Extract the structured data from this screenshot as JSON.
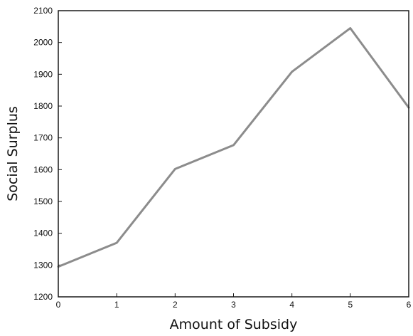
{
  "chart_data": {
    "type": "line",
    "title": "",
    "xlabel": "Amount of Subsidy",
    "ylabel": "Social Surplus",
    "x": [
      0,
      1,
      2,
      3,
      4,
      5,
      6
    ],
    "series": [
      {
        "values": [
          1295,
          1370,
          1602,
          1677,
          1908,
          2045,
          1795
        ]
      }
    ],
    "xlim": [
      0,
      6
    ],
    "ylim": [
      1200,
      2100
    ],
    "xticks": [
      "0",
      "1",
      "2",
      "3",
      "4",
      "5",
      "6"
    ],
    "yticks": [
      "1200",
      "1300",
      "1400",
      "1500",
      "1600",
      "1700",
      "1800",
      "1900",
      "2000",
      "2100"
    ],
    "grid": false,
    "legend": "none",
    "colors": {
      "line": "#8c8c8c",
      "axis": "#1a1a1a"
    }
  }
}
